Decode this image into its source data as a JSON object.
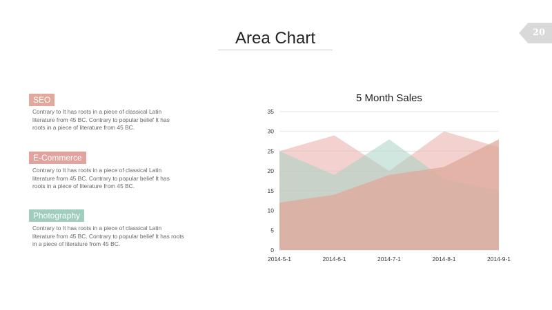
{
  "slide": {
    "title": "Area Chart",
    "page_number": "20"
  },
  "sections": [
    {
      "label": "SEO",
      "color": "#e0a99c",
      "text": [
        "Contrary to It has roots in a piece of classical Latin",
        "literature from 45 BC. Contrary to popular belief It has",
        "roots in a piece of literature from 45 BC."
      ]
    },
    {
      "label": "E-Commerce",
      "color": "#e0a39e",
      "text": [
        "Contrary to It has roots in a piece of classical Latin",
        "literature from 45 BC. Contrary to popular belief It has",
        "roots in a piece of literature from 45 BC."
      ]
    },
    {
      "label": "Photography",
      "color": "#9fcdbe",
      "text": [
        "Contrary to It has roots in a piece of classical Latin",
        "literature from 45 BC. Contrary to popular belief It has roots",
        "in a piece of literature from 45 BC."
      ]
    }
  ],
  "chart_data": {
    "type": "area",
    "title": "5 Month Sales",
    "categories": [
      "2014-5-1",
      "2014-6-1",
      "2014-7-1",
      "2014-8-1",
      "2014-9-1"
    ],
    "ylim": [
      0,
      35
    ],
    "yticks": [
      0,
      5,
      10,
      15,
      20,
      25,
      30,
      35
    ],
    "grid": true,
    "legend": "none",
    "series": [
      {
        "values": [
          25,
          29,
          20,
          30,
          26
        ],
        "color": "#eab3ad",
        "opacity": 0.6
      },
      {
        "values": [
          25,
          19,
          28,
          18,
          15
        ],
        "color": "#a7d3c4",
        "opacity": 0.55
      },
      {
        "values": [
          12,
          14,
          19,
          21,
          28
        ],
        "color": "#dfa89a",
        "opacity": 0.75
      }
    ]
  }
}
